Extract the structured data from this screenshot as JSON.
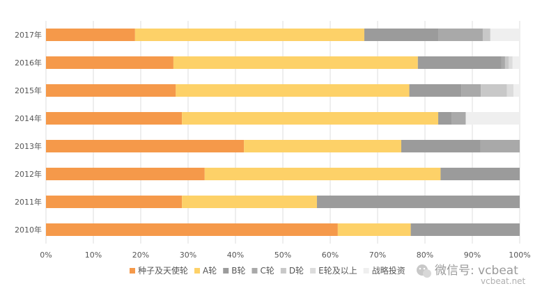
{
  "chart_data": {
    "type": "bar",
    "orientation": "horizontal",
    "stacked": "percent",
    "categories": [
      "2017年",
      "2016年",
      "2015年",
      "2014年",
      "2013年",
      "2012年",
      "2011年",
      "2010年"
    ],
    "xlim": [
      0,
      100
    ],
    "x_ticks": [
      "0%",
      "10%",
      "20%",
      "30%",
      "40%",
      "50%",
      "60%",
      "70%",
      "80%",
      "90%",
      "100%"
    ],
    "grid": "vertical",
    "legend_position": "bottom",
    "series": [
      {
        "name": "种子及天使轮",
        "color": "#f5994a",
        "values": [
          18.8,
          26.9,
          27.4,
          28.7,
          41.8,
          33.5,
          28.7,
          61.6
        ]
      },
      {
        "name": "A轮",
        "color": "#fdd168",
        "values": [
          48.4,
          51.6,
          49.3,
          54.1,
          33.2,
          49.8,
          28.5,
          15.4
        ]
      },
      {
        "name": "B轮",
        "color": "#9b9b9b",
        "values": [
          15.6,
          17.6,
          11.0,
          2.9,
          16.7,
          16.7,
          42.8,
          23.0
        ]
      },
      {
        "name": "C轮",
        "color": "#a9a9a9",
        "values": [
          9.4,
          0.8,
          4.1,
          2.9,
          8.3,
          0,
          0,
          0
        ]
      },
      {
        "name": "D轮",
        "color": "#c8c8c8",
        "values": [
          1.6,
          0.8,
          5.5,
          0,
          0,
          0,
          0,
          0
        ]
      },
      {
        "name": "E轮及以上",
        "color": "#dcdcdc",
        "values": [
          0,
          0.8,
          1.4,
          0,
          0,
          0,
          0,
          0
        ]
      },
      {
        "name": "战略投资",
        "color": "#efefef",
        "values": [
          6.2,
          1.5,
          1.3,
          11.4,
          0,
          0,
          0,
          0
        ]
      }
    ]
  },
  "watermark": {
    "text": "微信号: vcbeat",
    "url": "vcbeat.net",
    "icon": "wechat-icon"
  }
}
